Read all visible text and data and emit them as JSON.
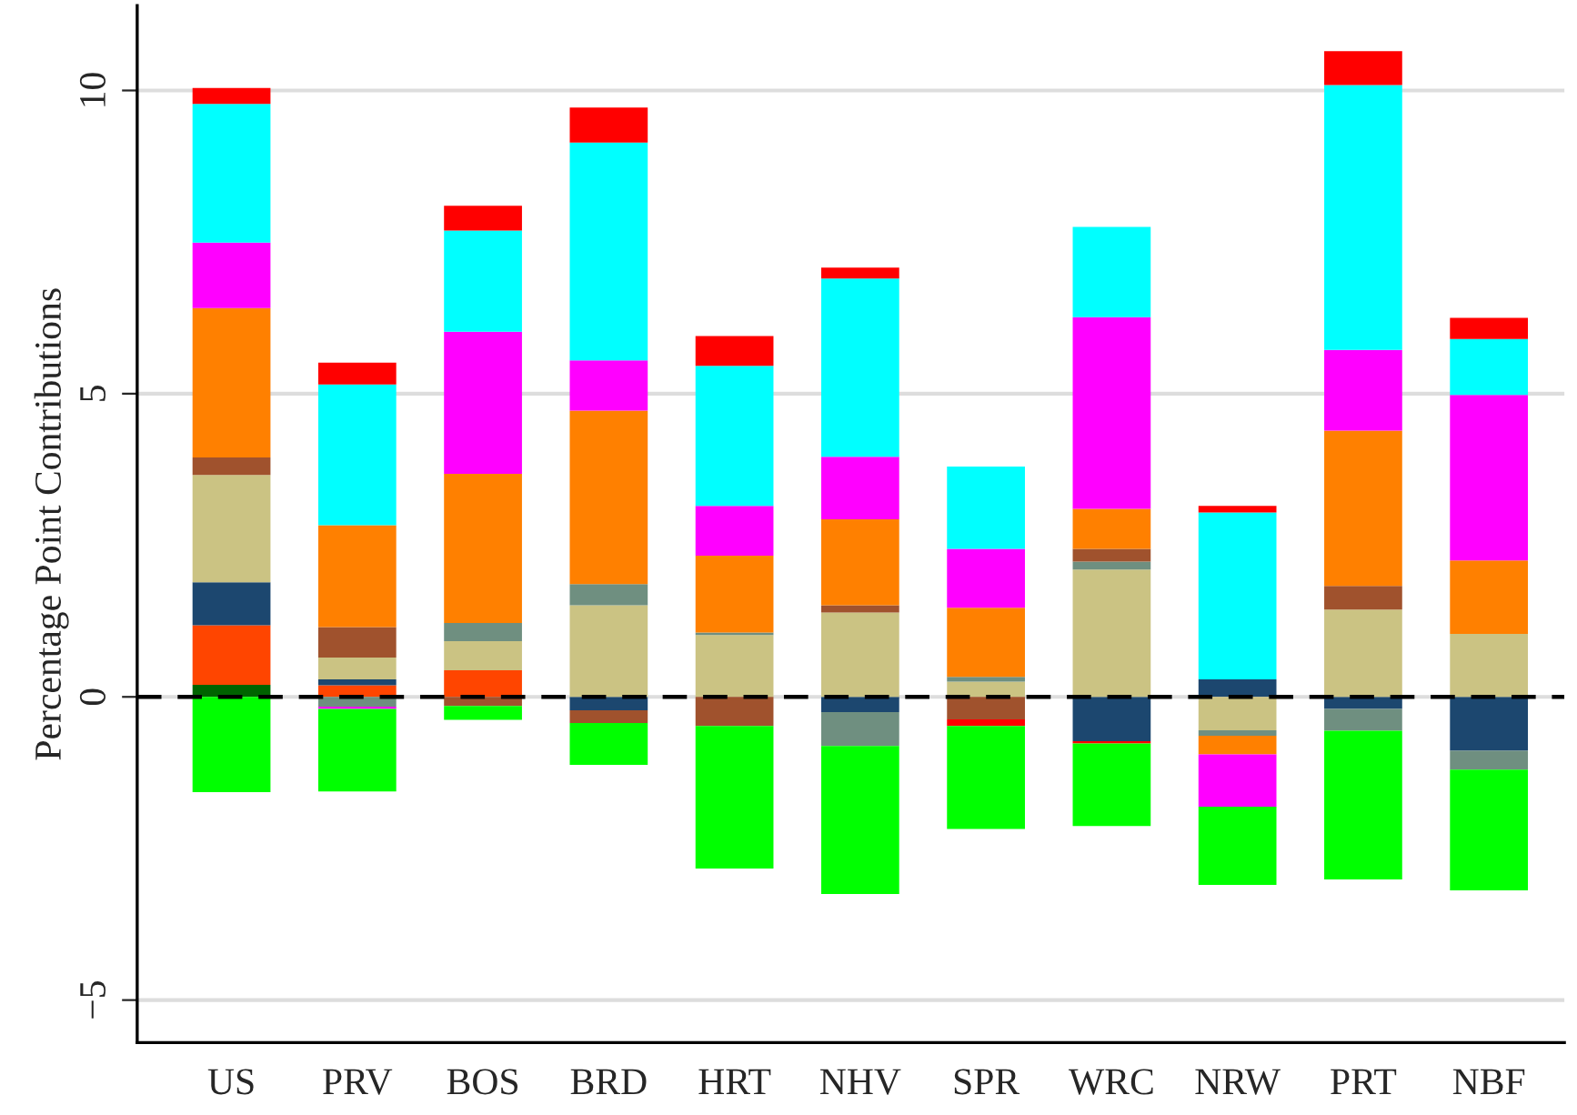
{
  "chart_data": {
    "type": "bar",
    "stacked": true,
    "ylabel": "Percentage Point Contributions",
    "categories": [
      "US",
      "PRV",
      "BOS",
      "BRD",
      "HRT",
      "NHV",
      "SPR",
      "WRC",
      "NRW",
      "PRT",
      "NBF"
    ],
    "series": [
      {
        "color": "#006400",
        "values": [
          0.2,
          null,
          null,
          null,
          null,
          null,
          null,
          null,
          null,
          null,
          null
        ]
      },
      {
        "color": "#ff4500",
        "values": [
          0.98,
          0.19,
          0.44,
          null,
          null,
          null,
          null,
          null,
          null,
          null,
          null
        ]
      },
      {
        "color": "#1c476f",
        "values": [
          0.71,
          0.1,
          null,
          -0.22,
          null,
          -0.25,
          null,
          -0.73,
          0.29,
          -0.2,
          -0.89
        ]
      },
      {
        "color": "#cbc383",
        "values": [
          1.77,
          0.36,
          0.48,
          1.51,
          1.02,
          1.39,
          0.25,
          2.1,
          -0.55,
          1.44,
          1.04
        ]
      },
      {
        "color": "#6f8f80",
        "values": [
          null,
          -0.16,
          0.3,
          0.35,
          0.04,
          -0.56,
          0.08,
          0.13,
          -0.09,
          -0.36,
          -0.31
        ]
      },
      {
        "color": "#a0522d",
        "values": [
          0.29,
          0.5,
          -0.15,
          -0.21,
          -0.48,
          0.12,
          -0.37,
          0.21,
          null,
          0.39,
          null
        ]
      },
      {
        "color": "#ff8000",
        "values": [
          2.46,
          1.68,
          2.46,
          2.86,
          1.27,
          1.42,
          1.14,
          0.66,
          -0.31,
          2.56,
          1.21
        ]
      },
      {
        "color": "#ff00ff",
        "values": [
          1.08,
          -0.04,
          2.34,
          0.83,
          0.82,
          1.03,
          0.97,
          3.16,
          -0.86,
          1.33,
          2.73
        ]
      },
      {
        "color": "#00ffff",
        "values": [
          2.29,
          2.32,
          1.67,
          3.59,
          2.31,
          2.94,
          1.36,
          1.49,
          2.75,
          4.37,
          0.92
        ]
      },
      {
        "color": "#ff0000",
        "values": [
          0.26,
          0.36,
          0.41,
          0.58,
          0.49,
          0.18,
          -0.11,
          -0.04,
          0.11,
          0.56,
          0.35
        ]
      },
      {
        "color": "#00ff00",
        "values": [
          -1.57,
          -1.36,
          -0.23,
          -0.69,
          -2.35,
          -2.44,
          -1.7,
          -1.36,
          -1.29,
          -2.45,
          -1.99
        ]
      }
    ],
    "ylim": [
      -5.7,
      11.4
    ],
    "yticks": [
      {
        "value": -5,
        "label": "−5"
      },
      0,
      5,
      10
    ],
    "grid": "y",
    "ref_lines": [
      {
        "axis": "y",
        "value": 0,
        "color": "#000000",
        "line_style": "dashed"
      }
    ]
  }
}
